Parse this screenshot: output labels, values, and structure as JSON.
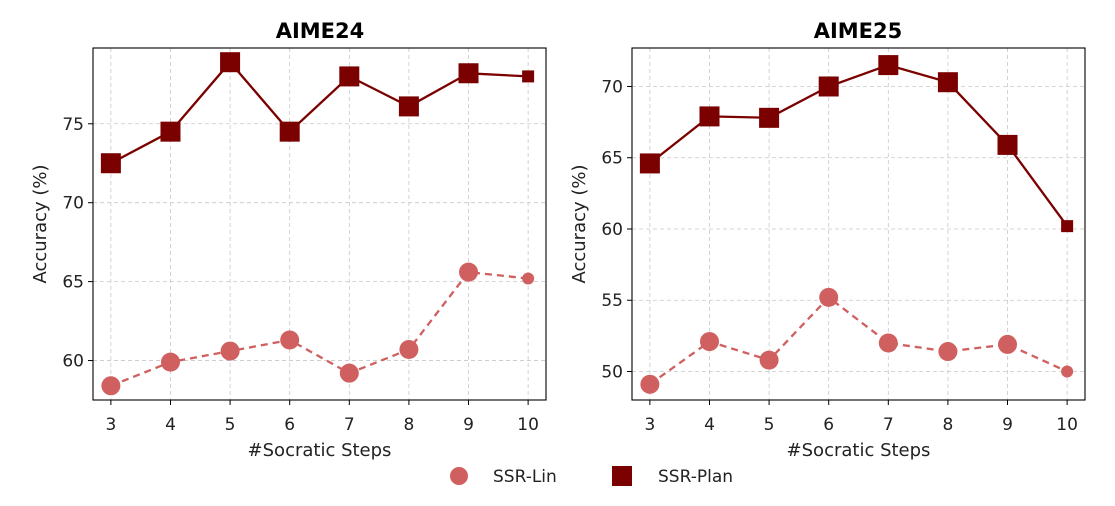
{
  "chart_data": [
    {
      "type": "line",
      "title": "AIME24",
      "xlabel": "#Socratic Steps",
      "ylabel": "Accuracy (%)",
      "x": [
        3,
        4,
        5,
        6,
        7,
        8,
        9,
        10
      ],
      "xticks": [
        "3",
        "4",
        "5",
        "6",
        "7",
        "8",
        "9",
        "10"
      ],
      "xlim": [
        2.7,
        10.3
      ],
      "ylim": [
        57.5,
        79.8
      ],
      "yticks": [
        60,
        65,
        70,
        75
      ],
      "grid": true,
      "series": [
        {
          "name": "SSR-Lin",
          "marker": "circle",
          "linestyle": "dashed",
          "color": "#d05f5f",
          "values": [
            58.4,
            59.9,
            60.6,
            61.3,
            59.2,
            60.7,
            65.6,
            65.2
          ]
        },
        {
          "name": "SSR-Plan",
          "marker": "square",
          "linestyle": "solid",
          "color": "#7b0000",
          "values": [
            72.5,
            74.5,
            78.9,
            74.5,
            78.0,
            76.1,
            78.2,
            78.0
          ]
        }
      ]
    },
    {
      "type": "line",
      "title": "AIME25",
      "xlabel": "#Socratic Steps",
      "ylabel": "Accuracy (%)",
      "x": [
        3,
        4,
        5,
        6,
        7,
        8,
        9,
        10
      ],
      "xticks": [
        "3",
        "4",
        "5",
        "6",
        "7",
        "8",
        "9",
        "10"
      ],
      "xlim": [
        2.7,
        10.3
      ],
      "ylim": [
        48.0,
        72.7
      ],
      "yticks": [
        50,
        55,
        60,
        65,
        70
      ],
      "grid": true,
      "series": [
        {
          "name": "SSR-Lin",
          "marker": "circle",
          "linestyle": "dashed",
          "color": "#d05f5f",
          "values": [
            49.1,
            52.1,
            50.8,
            55.2,
            52.0,
            51.4,
            51.9,
            50.0
          ]
        },
        {
          "name": "SSR-Plan",
          "marker": "square",
          "linestyle": "solid",
          "color": "#7b0000",
          "values": [
            64.6,
            67.9,
            67.8,
            70.0,
            71.5,
            70.3,
            65.9,
            60.2
          ]
        }
      ]
    }
  ],
  "legend": {
    "placement": "bottom-center",
    "items": [
      {
        "label": "SSR-Lin",
        "marker": "circle",
        "color": "#d05f5f"
      },
      {
        "label": "SSR-Plan",
        "marker": "square",
        "color": "#7b0000"
      }
    ]
  }
}
